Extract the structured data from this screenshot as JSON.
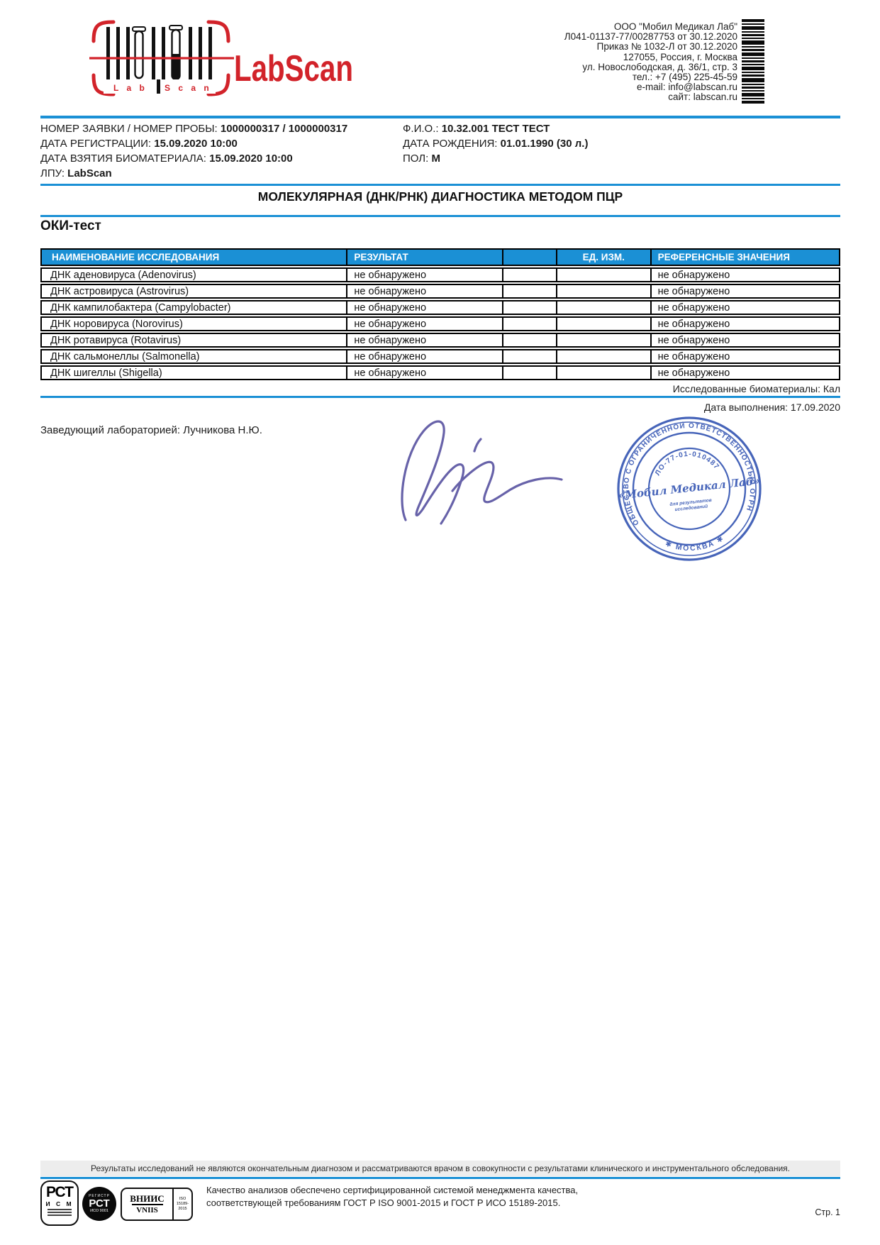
{
  "colors": {
    "accent_blue": "#1b90d5",
    "stamp_blue": "#2d4fb0",
    "signature_ink": "#5b55a2",
    "logo_red": "#d2232a"
  },
  "header": {
    "logo": {
      "title": "LabScan",
      "small_left": "L a b",
      "small_right": "S c a n"
    },
    "company_lines": [
      "ООО \"Мобил Медикал Лаб\"",
      "Л041-01137-77/00287753 от 30.12.2020",
      "Приказ № 1032-Л от 30.12.2020",
      "127055, Россия, г. Москва",
      "ул. Новослободская, д. 36/1, стр. 3",
      "тел.: +7 (495) 225-45-59",
      "e-mail: info@labscan.ru",
      "сайт: labscan.ru"
    ]
  },
  "patient": {
    "left": [
      {
        "label": "НОМЕР ЗАЯВКИ / НОМЕР ПРОБЫ:",
        "value": "1000000317 / 1000000317"
      },
      {
        "label": "ДАТА РЕГИСТРАЦИИ:",
        "value": "15.09.2020 10:00"
      },
      {
        "label": "ДАТА ВЗЯТИЯ БИОМАТЕРИАЛА:",
        "value": "15.09.2020 10:00"
      },
      {
        "label": "ЛПУ:",
        "value": "LabScan"
      }
    ],
    "right": [
      {
        "label": "Ф.И.О.:",
        "value": "10.32.001 ТЕСТ ТЕСТ"
      },
      {
        "label": "ДАТА РОЖДЕНИЯ:",
        "value": "01.01.1990 (30 л.)"
      },
      {
        "label": "ПОЛ:",
        "value": "М"
      }
    ]
  },
  "report": {
    "title": "МОЛЕКУЛЯРНАЯ (ДНК/РНК) ДИАГНОСТИКА МЕТОДОМ ПЦР",
    "section_title": "ОКИ-тест",
    "table": {
      "headers": [
        "НАИМЕНОВАНИЕ ИССЛЕДОВАНИЯ",
        "РЕЗУЛЬТАТ",
        "",
        "ЕД. ИЗМ.",
        "РЕФЕРЕНСНЫЕ ЗНАЧЕНИЯ"
      ],
      "rows": [
        {
          "name": "ДНК аденовируса (Adenovirus)",
          "result": "не обнаружено",
          "flag": "",
          "unit": "",
          "reference": "не обнаружено"
        },
        {
          "name": "ДНК астровируса (Astrovirus)",
          "result": "не обнаружено",
          "flag": "",
          "unit": "",
          "reference": "не обнаружено"
        },
        {
          "name": "ДНК кампилобактера (Campylobacter)",
          "result": "не обнаружено",
          "flag": "",
          "unit": "",
          "reference": "не обнаружено"
        },
        {
          "name": "ДНК норовируса (Norovirus)",
          "result": "не обнаружено",
          "flag": "",
          "unit": "",
          "reference": "не обнаружено"
        },
        {
          "name": "ДНК ротавируса (Rotavirus)",
          "result": "не обнаружено",
          "flag": "",
          "unit": "",
          "reference": "не обнаружено"
        },
        {
          "name": "ДНК сальмонеллы (Salmonella)",
          "result": "не обнаружено",
          "flag": "",
          "unit": "",
          "reference": "не обнаружено"
        },
        {
          "name": "ДНК шигеллы (Shigella)",
          "result": "не обнаружено",
          "flag": "",
          "unit": "",
          "reference": "не обнаружено"
        }
      ]
    },
    "biomaterial_note": "Исследованные биоматериалы: Кал",
    "completion_note": "Дата выполнения: 17.09.2020",
    "signatory": "Заведующий лабораторией: Лучникова Н.Ю."
  },
  "stamp": {
    "ring_text": "ОБЩЕСТВО С ОГРАНИЧЕННОЙ ОТВЕТСТВЕННОСТЬЮ  ОГРН 1157746",
    "license": "ЛО-77-01-010487",
    "center": "«Мобил Медикал Лаб»",
    "purpose_line1": "для результатов",
    "purpose_line2": "исследований",
    "city": "✱ МОСКВА ✱"
  },
  "footer": {
    "disclaimer": "Результаты исследований не являются окончательным диагнозом и рассматриваются врачом в совокупности с результатами клинического и инструментального обследования.",
    "quality_lines": [
      "Качество анализов обеспечено сертифицированной системой менеджмента качества,",
      "соответствующей требованиям ГОСТ Р ISO 9001-2015 и ГОСТ Р ИСО 15189-2015."
    ],
    "certs": {
      "rst": "РСТ",
      "ism": "И С М",
      "registr": "РЕГИСТР",
      "iso9001": "ИСО 9001",
      "vniis": "ВНИИС",
      "vniis_lat": "VNIIS",
      "iso15189": "ISO 15189-2015"
    },
    "page": "Стр. 1"
  }
}
